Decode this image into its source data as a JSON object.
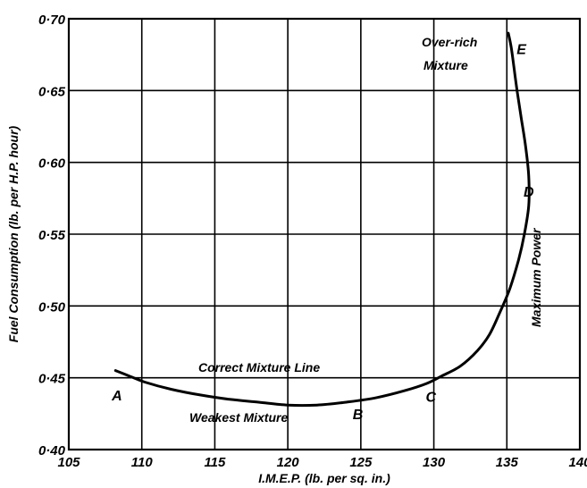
{
  "chart_data": {
    "type": "line",
    "title": "",
    "xlabel": "I.M.E.P. (lb. per sq. in.)",
    "ylabel": "Fuel Consumption (lb. per H.P. hour)",
    "xlim": [
      105,
      140
    ],
    "ylim": [
      0.4,
      0.7
    ],
    "x_ticks": [
      "105",
      "110",
      "115",
      "120",
      "125",
      "130",
      "135",
      "140"
    ],
    "y_ticks": [
      "0·40",
      "0·45",
      "0·50",
      "0·55",
      "0·60",
      "0·65",
      "0·70"
    ],
    "grid": true,
    "series": [
      {
        "points": [
          [
            108.2,
            0.455
          ],
          [
            109.2,
            0.451
          ],
          [
            110.2,
            0.447
          ],
          [
            112,
            0.442
          ],
          [
            114,
            0.438
          ],
          [
            116,
            0.435
          ],
          [
            118,
            0.433
          ],
          [
            120,
            0.431
          ],
          [
            122,
            0.431
          ],
          [
            124,
            0.433
          ],
          [
            126,
            0.436
          ],
          [
            128,
            0.441
          ],
          [
            129.5,
            0.446
          ],
          [
            130.5,
            0.451
          ],
          [
            131.8,
            0.458
          ],
          [
            133,
            0.469
          ],
          [
            133.8,
            0.48
          ],
          [
            134.5,
            0.495
          ],
          [
            135.2,
            0.512
          ],
          [
            135.8,
            0.532
          ],
          [
            136.2,
            0.55
          ],
          [
            136.5,
            0.57
          ],
          [
            136.5,
            0.59
          ],
          [
            136.3,
            0.61
          ],
          [
            136,
            0.63
          ],
          [
            135.7,
            0.65
          ],
          [
            135.5,
            0.665
          ],
          [
            135.3,
            0.68
          ],
          [
            135.1,
            0.69
          ]
        ]
      }
    ],
    "point_labels": [
      {
        "label": "A",
        "x": 108.3,
        "y": 0.438
      },
      {
        "label": "B",
        "x": 124.8,
        "y": 0.425
      },
      {
        "label": "C",
        "x": 129.8,
        "y": 0.437
      },
      {
        "label": "D",
        "x": 136.5,
        "y": 0.58
      },
      {
        "label": "E",
        "x": 136,
        "y": 0.679
      }
    ],
    "annotations": {
      "correct_mixture": "Correct Mixture Line",
      "weakest_mixture": "Weakest Mixture",
      "over_rich_1": "Over-rich",
      "over_rich_2": "Mixture",
      "maximum_power": "Maximum Power"
    }
  }
}
